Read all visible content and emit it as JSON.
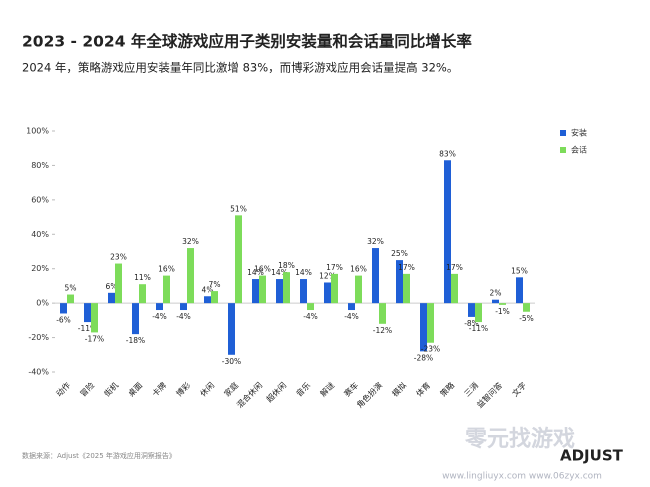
{
  "chart_data": {
    "type": "bar",
    "title": "2023 - 2024 年全球游戏应用子类别安装量和会话量同比增长率",
    "subtitle": "2024 年，策略游戏应用安装量年同比激增 83%，而博彩游戏应用会话量提高 32%。",
    "source": "数据来源：Adjust《2025 年游戏应用洞察报告》",
    "categories": [
      "动作",
      "冒险",
      "街机",
      "桌面",
      "卡牌",
      "博彩",
      "休闲",
      "家庭",
      "混合休闲",
      "超休闲",
      "音乐",
      "解谜",
      "赛车",
      "角色扮演",
      "模拟",
      "体育",
      "策略",
      "三消",
      "益智问答",
      "文字"
    ],
    "series": [
      {
        "name": "安装",
        "color": "#1f5fd6",
        "values": [
          -6,
          -11,
          6,
          -18,
          -4,
          -4,
          4,
          -30,
          14,
          14,
          14,
          12,
          -4,
          32,
          25,
          -28,
          83,
          -8,
          2,
          15
        ],
        "value_labels": [
          "-6%",
          "-11%",
          "6%",
          "-18%",
          "-4%",
          "-4%",
          "4%",
          "-30%",
          "14%",
          "14%",
          "14%",
          "12%",
          "-4%",
          "32%",
          "25%",
          "-28%",
          "83%",
          "-8%",
          "2%",
          "15%"
        ]
      },
      {
        "name": "会话",
        "color": "#7ddc5a",
        "values": [
          5,
          -17,
          23,
          11,
          16,
          32,
          7,
          51,
          16,
          18,
          -4,
          17,
          16,
          -12,
          17,
          -23,
          17,
          -11,
          -1,
          -5
        ],
        "value_labels": [
          "5%",
          "-17%",
          "23%",
          "11%",
          "16%",
          "32%",
          "7%",
          "51%",
          "16%",
          "18%",
          "-4%",
          "17%",
          "16%",
          "-12%",
          "17%",
          "-23%",
          "17%",
          "-11%",
          "-1%",
          "-5%"
        ]
      }
    ],
    "ylim": [
      -40,
      100
    ],
    "yticks": [
      {
        "value": -40,
        "label": "-40%"
      },
      {
        "value": -20,
        "label": "-20%"
      },
      {
        "value": 0,
        "label": "0%"
      },
      {
        "value": 20,
        "label": "20%"
      },
      {
        "value": 40,
        "label": "40%"
      },
      {
        "value": 60,
        "label": "60%"
      },
      {
        "value": 80,
        "label": "80%"
      },
      {
        "value": 100,
        "label": "100%"
      }
    ],
    "legend": "right"
  },
  "brand": "ADJUST",
  "watermark": {
    "name": "零元找游戏",
    "urls": "www.lingliuyx.com  www.06zyx.com"
  }
}
